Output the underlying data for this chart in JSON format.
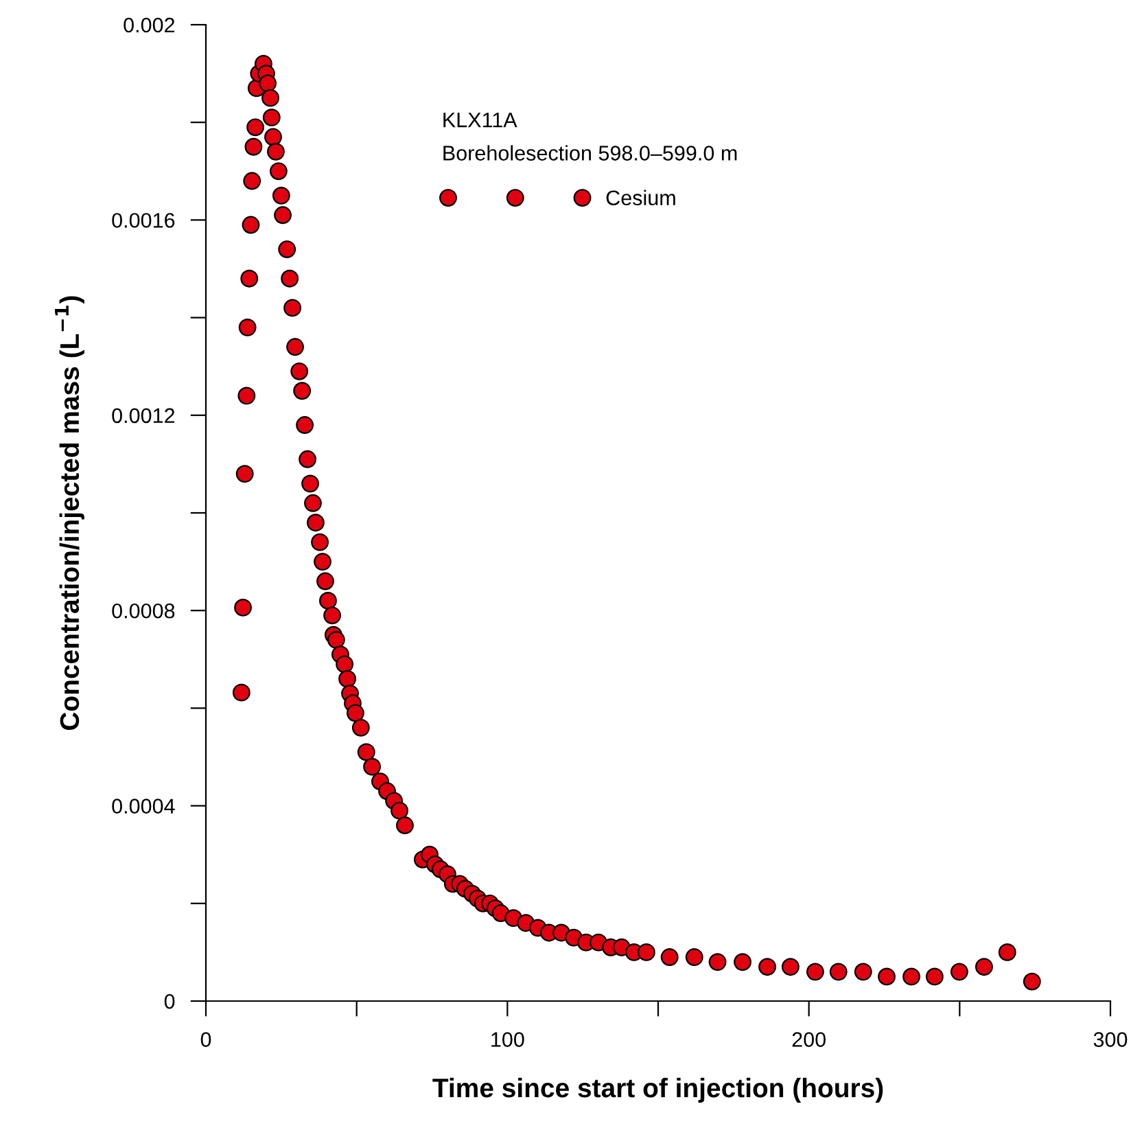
{
  "chart_data": {
    "type": "scatter",
    "xlabel": "Time since start of injection (hours)",
    "ylabel": "Concentration/injected mass (L$^{−1}$)",
    "legend_title": "KLX11A\nBoreholesection 598.0–599.0 m",
    "legend": "top",
    "marker": "circle",
    "grid": false,
    "xlim": [
      0,
      300
    ],
    "ylim": [
      0,
      0.002
    ],
    "xticks": [
      0,
      {
        "value": 50,
        "label": null
      },
      100,
      {
        "value": 150,
        "label": null
      },
      200,
      {
        "value": 250,
        "label": null
      },
      300
    ],
    "yticks": [
      0,
      {
        "value": 0.0002,
        "label": null
      },
      0.0004,
      {
        "value": 0.0006,
        "label": null
      },
      0.0008,
      {
        "value": 0.001,
        "label": null
      },
      0.0012,
      {
        "value": 0.0014,
        "label": null
      },
      0.0016,
      {
        "value": 0.0018,
        "label": null
      },
      0.002
    ],
    "series": [
      {
        "name": "Cesium",
        "color": "#e0000f",
        "x": [
          11.8,
          12.3,
          12.9,
          13.5,
          13.8,
          14.4,
          14.9,
          15.3,
          15.8,
          16.4,
          16.8,
          17.6,
          19.1,
          20.0,
          20.5,
          21.4,
          21.8,
          22.3,
          23.2,
          24.1,
          25.0,
          25.5,
          26.9,
          27.8,
          28.7,
          29.6,
          31.0,
          31.9,
          32.8,
          33.7,
          34.6,
          35.5,
          36.4,
          37.8,
          38.7,
          39.6,
          40.5,
          41.9,
          42.3,
          43.2,
          44.6,
          46.0,
          46.9,
          47.8,
          48.7,
          49.6,
          51.4,
          53.2,
          55.1,
          57.8,
          60.1,
          62.4,
          64.2,
          66.0,
          71.9,
          74.2,
          76.0,
          77.8,
          80.1,
          81.9,
          84.2,
          86.0,
          88.3,
          90.1,
          91.9,
          94.2,
          96.0,
          97.8,
          102.0,
          106.1,
          110.1,
          113.8,
          117.9,
          122.0,
          126.1,
          130.2,
          134.3,
          137.9,
          142.0,
          146.1,
          153.8,
          162.0,
          169.7,
          178.0,
          186.2,
          193.9,
          202.1,
          209.8,
          218.0,
          225.8,
          234.0,
          241.7,
          249.9,
          258.1,
          265.8,
          274.0
        ],
        "values": [
          0.000632,
          0.000806,
          0.00108,
          0.00124,
          0.00138,
          0.00148,
          0.00159,
          0.00168,
          0.00175,
          0.00179,
          0.00187,
          0.0019,
          0.00192,
          0.0019,
          0.00188,
          0.00185,
          0.00181,
          0.00177,
          0.00174,
          0.0017,
          0.00165,
          0.00161,
          0.00154,
          0.00148,
          0.00142,
          0.00134,
          0.00129,
          0.00125,
          0.00118,
          0.00111,
          0.00106,
          0.00102,
          0.00098,
          0.00094,
          0.0009,
          0.00086,
          0.00082,
          0.00079,
          0.00075,
          0.00074,
          0.00071,
          0.00069,
          0.00066,
          0.00063,
          0.00061,
          0.00059,
          0.00056,
          0.00051,
          0.00048,
          0.00045,
          0.00043,
          0.00041,
          0.00039,
          0.00036,
          0.00029,
          0.0003,
          0.00028,
          0.00027,
          0.00026,
          0.00024,
          0.00024,
          0.00023,
          0.00022,
          0.00021,
          0.0002,
          0.0002,
          0.00019,
          0.00018,
          0.00017,
          0.00016,
          0.00015,
          0.00014,
          0.00014,
          0.00013,
          0.00012,
          0.00012,
          0.00011,
          0.00011,
          0.0001,
          0.0001,
          9e-05,
          9e-05,
          8e-05,
          8e-05,
          7e-05,
          7e-05,
          6e-05,
          6e-05,
          6e-05,
          5e-05,
          5e-05,
          5e-05,
          6e-05,
          7e-05,
          0.0001,
          4e-05
        ]
      }
    ]
  }
}
